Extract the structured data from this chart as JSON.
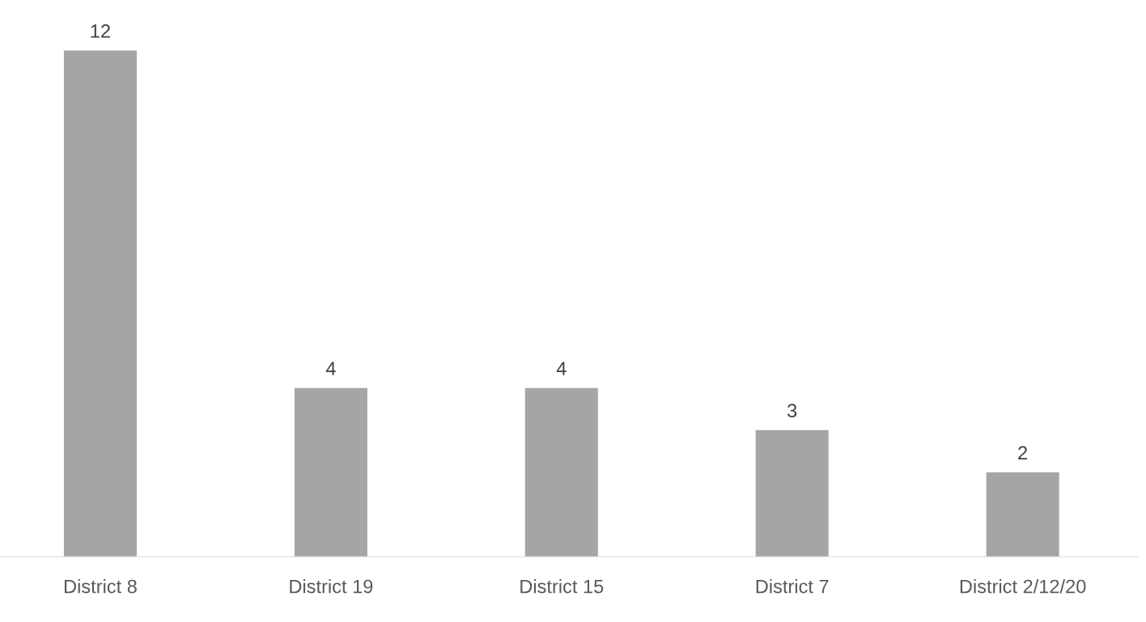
{
  "chart_data": {
    "type": "bar",
    "categories": [
      "District 8",
      "District 19",
      "District 15",
      "District 7",
      "District 2/12/20"
    ],
    "values": [
      12,
      4,
      4,
      3,
      2
    ],
    "color": "#a5a5a5",
    "data_labels": true,
    "grid": false,
    "legend": false
  }
}
